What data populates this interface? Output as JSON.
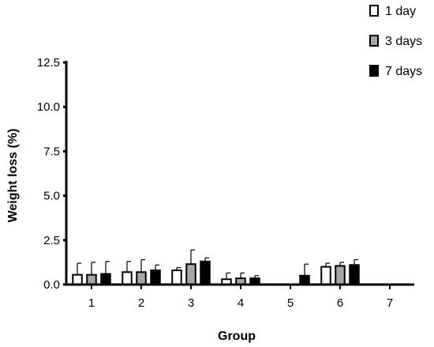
{
  "chart_data": {
    "type": "bar",
    "xlabel": "Group",
    "ylabel": "Weight loss (%)",
    "categories": [
      "1",
      "2",
      "3",
      "4",
      "5",
      "6",
      "7"
    ],
    "ylim": [
      0,
      12.5
    ],
    "yticks": [
      "0.0",
      "2.5",
      "5.0",
      "7.5",
      "10.0",
      "12.5"
    ],
    "grid": false,
    "legend_position": "top-right",
    "series": [
      {
        "name": "1 day",
        "color": "#ffffff",
        "values": [
          0.55,
          0.7,
          0.8,
          0.3,
          0.0,
          1.0,
          0.0
        ],
        "errors": [
          0.65,
          0.6,
          0.15,
          0.35,
          0.0,
          0.2,
          0.0
        ]
      },
      {
        "name": "3 days",
        "color": "#a6a6a6",
        "values": [
          0.55,
          0.7,
          1.15,
          0.35,
          0.0,
          1.05,
          0.0
        ],
        "errors": [
          0.7,
          0.7,
          0.8,
          0.3,
          0.0,
          0.2,
          0.0
        ]
      },
      {
        "name": "7 days",
        "color": "#000000",
        "values": [
          0.6,
          0.8,
          1.3,
          0.35,
          0.5,
          1.1,
          0.0
        ],
        "errors": [
          0.7,
          0.3,
          0.2,
          0.15,
          0.65,
          0.3,
          0.0
        ]
      }
    ]
  }
}
